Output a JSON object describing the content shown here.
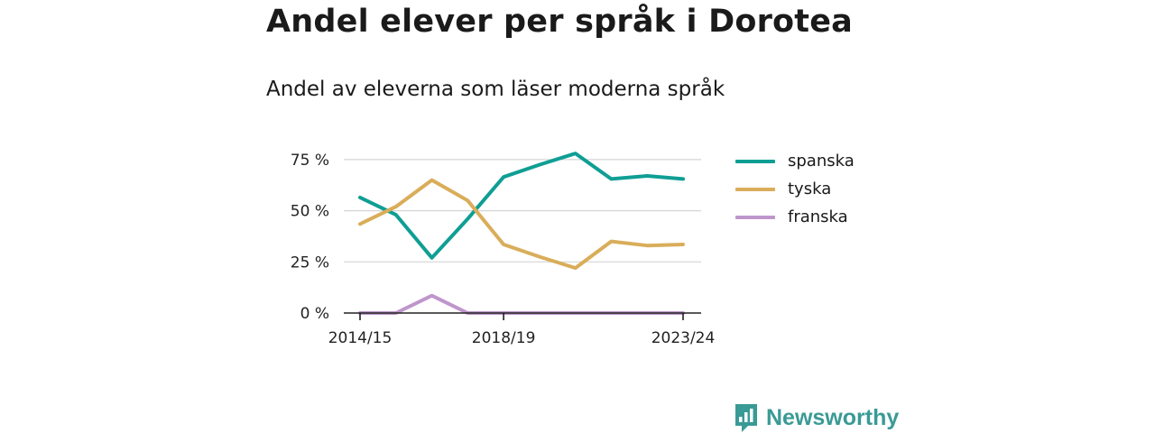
{
  "header": {
    "title": "Andel elever per språk i Dorotea",
    "subtitle": "Andel av eleverna som läser moderna språk"
  },
  "brand": {
    "name": "Newsworthy",
    "icon": "newsworthy-logo-icon",
    "color": "#3a9a95"
  },
  "chart_data": {
    "type": "line",
    "x": [
      "2014/15",
      "2015/16",
      "2016/17",
      "2017/18",
      "2018/19",
      "2019/20",
      "2020/21",
      "2021/22",
      "2022/23",
      "2023/24"
    ],
    "x_tick_labels": [
      "2014/15",
      "2018/19",
      "2023/24"
    ],
    "series": [
      {
        "name": "spanska",
        "color": "#0f9e94",
        "values": [
          56.5,
          48,
          27,
          46,
          66.5,
          72.5,
          78,
          65.5,
          67,
          65.5
        ]
      },
      {
        "name": "tyska",
        "color": "#d9ad5a",
        "values": [
          43.5,
          52,
          65,
          55,
          33.5,
          27.5,
          22,
          35,
          33,
          33.5
        ]
      },
      {
        "name": "franska",
        "color": "#bf96cc",
        "values": [
          0,
          0,
          8.5,
          0,
          0,
          0,
          0,
          0,
          0,
          0
        ]
      }
    ],
    "y_ticks": [
      0,
      25,
      50,
      75
    ],
    "y_tick_labels": [
      "0 %",
      "25 %",
      "50 %",
      "75 %"
    ],
    "ylim": [
      0,
      80
    ],
    "grid": "horizontal",
    "legend_position": "right"
  }
}
